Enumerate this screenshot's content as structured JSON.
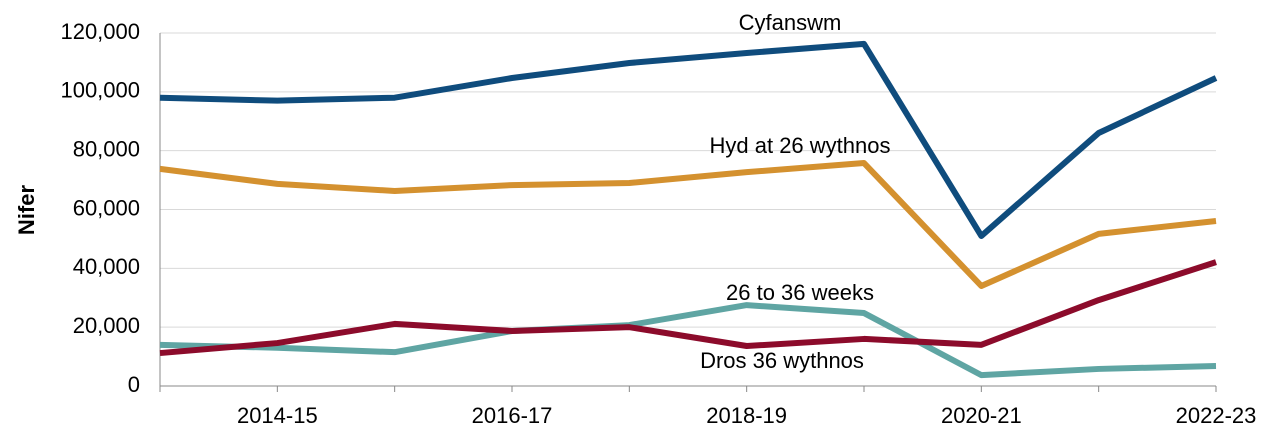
{
  "chart_data": {
    "type": "line",
    "y_label": "Nifer",
    "categories": [
      null,
      "2014-15",
      null,
      "2016-17",
      null,
      "2018-19",
      null,
      "2020-21",
      null,
      "2022-23"
    ],
    "series": [
      {
        "name": "Cyfanswm",
        "color": "#0f4c7d",
        "values": [
          98000,
          97000,
          98000,
          104700,
          109800,
          113200,
          116300,
          51000,
          86000,
          104700
        ]
      },
      {
        "name": "Hyd at 26 wythnos",
        "color": "#d4912f",
        "values": [
          73800,
          68700,
          66300,
          68300,
          69000,
          72700,
          75800,
          34000,
          51700,
          56100
        ]
      },
      {
        "name": "26 to 36 weeks",
        "color": "#5fa5a3",
        "values": [
          14000,
          13000,
          11500,
          18700,
          20700,
          27500,
          24800,
          3700,
          5800,
          6800
        ]
      },
      {
        "name": "Dros 36 wythnos",
        "color": "#8c0b2b",
        "values": [
          11200,
          14600,
          21100,
          18700,
          20000,
          13600,
          16000,
          14000,
          29200,
          42100
        ]
      }
    ],
    "ylim": [
      0,
      120000
    ],
    "yticks": [
      0,
      {
        "value": 20000,
        "label": "20,000"
      },
      {
        "value": 40000,
        "label": "40,000"
      },
      {
        "value": 60000,
        "label": "60,000"
      },
      {
        "value": 80000,
        "label": "80,000"
      },
      {
        "value": 100000,
        "label": "100,000"
      },
      {
        "value": 120000,
        "label": "120,000"
      }
    ],
    "grid": true
  }
}
